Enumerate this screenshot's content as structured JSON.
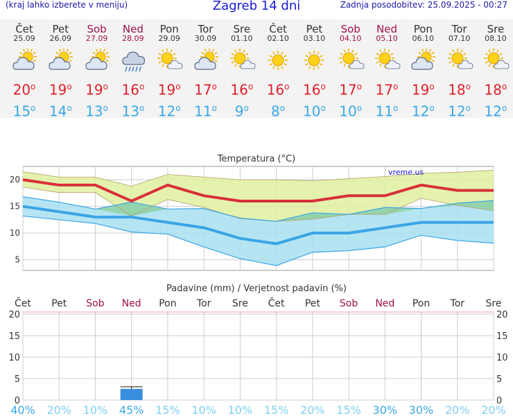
{
  "header": {
    "left_note": "(kraj lahko izberete v meniju)",
    "title": "Zagreb 14 dni",
    "updated": "Zadnja posodobitev: 25.09.2025 - 00:27"
  },
  "days": [
    {
      "name": "Čet",
      "date": "25.09",
      "weekend": false,
      "icon": "partly-cloudy-icon",
      "max": "20",
      "min": "15"
    },
    {
      "name": "Pet",
      "date": "26.09",
      "weekend": false,
      "icon": "partly-cloudy-icon",
      "max": "19",
      "min": "14"
    },
    {
      "name": "Sob",
      "date": "27.09",
      "weekend": true,
      "icon": "partly-cloudy-icon",
      "max": "19",
      "min": "13"
    },
    {
      "name": "Ned",
      "date": "28.09",
      "weekend": true,
      "icon": "rain-cloud-icon",
      "max": "16",
      "min": "13"
    },
    {
      "name": "Pon",
      "date": "29.09",
      "weekend": false,
      "icon": "sun-small-cloud-icon",
      "max": "19",
      "min": "12"
    },
    {
      "name": "Tor",
      "date": "30.09",
      "weekend": false,
      "icon": "partly-cloudy-icon",
      "max": "17",
      "min": "11"
    },
    {
      "name": "Sre",
      "date": "01.10",
      "weekend": false,
      "icon": "sun-small-cloud-icon",
      "max": "16",
      "min": "9"
    },
    {
      "name": "Čet",
      "date": "02.10",
      "weekend": false,
      "icon": "sun-icon",
      "max": "16",
      "min": "8"
    },
    {
      "name": "Pet",
      "date": "03.10",
      "weekend": false,
      "icon": "sun-icon",
      "max": "16",
      "min": "10"
    },
    {
      "name": "Sob",
      "date": "04.10",
      "weekend": true,
      "icon": "sun-small-cloud-icon",
      "max": "17",
      "min": "10"
    },
    {
      "name": "Ned",
      "date": "05.10",
      "weekend": true,
      "icon": "sun-small-cloud-icon",
      "max": "17",
      "min": "11"
    },
    {
      "name": "Pon",
      "date": "06.10",
      "weekend": false,
      "icon": "partly-cloudy-icon",
      "max": "19",
      "min": "12"
    },
    {
      "name": "Tor",
      "date": "07.10",
      "weekend": false,
      "icon": "sun-small-cloud-icon",
      "max": "18",
      "min": "12"
    },
    {
      "name": "Sre",
      "date": "08.10",
      "weekend": false,
      "icon": "sun-small-cloud-icon",
      "max": "18",
      "min": "12"
    }
  ],
  "colors": {
    "max": "#e0202a",
    "min": "#3aa8e6",
    "weekend": "#a0104a",
    "max_band": "#dff0a0",
    "min_band": "#a8e0f0",
    "overlap": "#7cc87c",
    "min_line": "#3aa4e6",
    "precip_bar": "#3a8ee0",
    "title_blue": "#1a1ad6"
  },
  "chart_data": [
    {
      "type": "line",
      "title": "Temperatura (°C)",
      "watermark": "vreme.us",
      "x": [
        "25.09",
        "26.09",
        "27.09",
        "28.09",
        "29.09",
        "30.09",
        "01.10",
        "02.10",
        "03.10",
        "04.10",
        "05.10",
        "06.10",
        "07.10",
        "08.10"
      ],
      "yticks": [
        5,
        10,
        15,
        20
      ],
      "ylim": [
        3,
        22.5
      ],
      "grid": true,
      "series": [
        {
          "id": "max",
          "values": [
            20,
            19,
            19,
            16,
            19,
            17,
            16,
            16,
            16,
            17,
            17,
            19,
            18,
            18
          ]
        },
        {
          "id": "min",
          "values": [
            15,
            14,
            13,
            13,
            12,
            11,
            9,
            8,
            10,
            10,
            11,
            12,
            12,
            12
          ]
        },
        {
          "id": "max_upper",
          "values": [
            21.5,
            20.5,
            20.5,
            18.8,
            21,
            20.5,
            20,
            20,
            19.8,
            20.2,
            20.6,
            21.2,
            21.4,
            21.8
          ]
        },
        {
          "id": "max_lower",
          "values": [
            18.6,
            17.6,
            17.6,
            13.2,
            16.3,
            14.8,
            12.7,
            12.2,
            12.6,
            13.5,
            13.5,
            16.5,
            15.2,
            14.2
          ]
        },
        {
          "id": "min_upper",
          "values": [
            16.8,
            15.8,
            14.5,
            15.8,
            14.5,
            14.6,
            12.8,
            12.2,
            13.8,
            13.5,
            14.8,
            14.6,
            15.6,
            16.1
          ]
        },
        {
          "id": "min_lower",
          "values": [
            13.2,
            12.5,
            11.8,
            10.2,
            9.8,
            7.4,
            5.2,
            3.9,
            6.4,
            6.7,
            7.4,
            9.6,
            8.6,
            8.1
          ]
        }
      ]
    },
    {
      "type": "bar",
      "title": "Padavine (mm) / Verjetnost padavin (%)",
      "categories": [
        "Čet",
        "Pet",
        "Sob",
        "Ned",
        "Pon",
        "Tor",
        "Sre",
        "Čet",
        "Pet",
        "Sob",
        "Ned",
        "Pon",
        "Tor",
        "Sre"
      ],
      "weekend": [
        false,
        false,
        true,
        true,
        false,
        false,
        false,
        false,
        false,
        true,
        true,
        false,
        false,
        false
      ],
      "values": [
        0,
        0,
        0,
        2.6,
        0,
        0,
        0,
        0,
        0,
        0,
        0,
        0,
        0,
        0
      ],
      "error_high": [
        0,
        0,
        0,
        3.1,
        0,
        0,
        0,
        0,
        0,
        0,
        0,
        0,
        0,
        0
      ],
      "probability": [
        "40%",
        "20%",
        "10%",
        "45%",
        "15%",
        "10%",
        "10%",
        "15%",
        "20%",
        "15%",
        "30%",
        "30%",
        "20%",
        "20%"
      ],
      "probability_strong": [
        true,
        false,
        false,
        true,
        false,
        false,
        false,
        false,
        false,
        false,
        true,
        true,
        false,
        false
      ],
      "yticks": [
        0,
        5,
        10,
        15,
        20
      ],
      "ylim": [
        0,
        20.5
      ],
      "grid": true
    }
  ]
}
